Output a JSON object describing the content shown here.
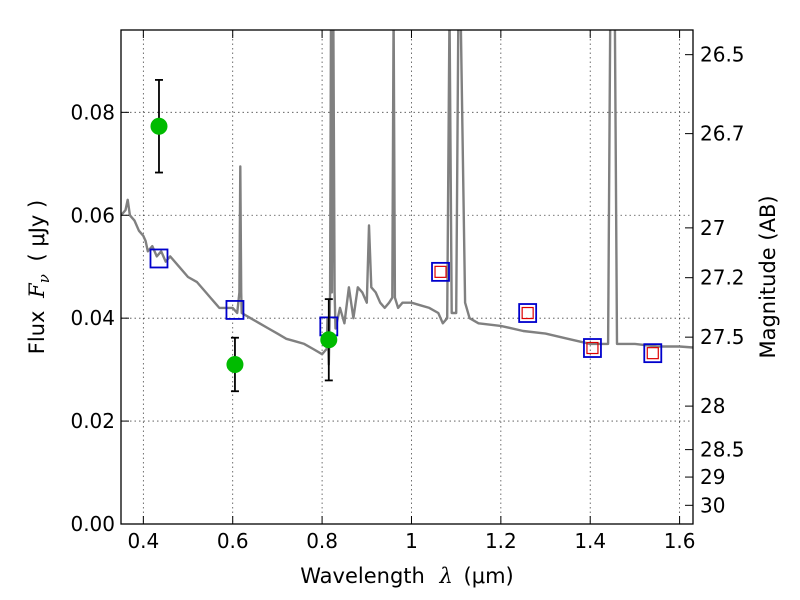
{
  "chart_data": {
    "type": "scatter",
    "title": "",
    "xlabel": {
      "prefix": "Wavelength",
      "symbol": "λ",
      "unit": "(μm)"
    },
    "ylabel": {
      "prefix": "Flux",
      "symbol": "F",
      "subscript": "ν",
      "unit": "( μJy )"
    },
    "y2label": "Magnitude (AB)",
    "xlim": [
      0.35,
      1.63
    ],
    "ylim": [
      0.0,
      0.096
    ],
    "x_ticks": [
      0.4,
      0.6,
      0.8,
      1.0,
      1.2,
      1.4,
      1.6
    ],
    "x_tick_labels": [
      "0.4",
      "0.6",
      "0.8",
      "1",
      "1.2",
      "1.4",
      "1.6"
    ],
    "y_ticks": [
      0.0,
      0.02,
      0.04,
      0.06,
      0.08
    ],
    "y_tick_labels": [
      "0.00",
      "0.02",
      "0.04",
      "0.06",
      "0.08"
    ],
    "y2_ticks": [
      26.5,
      26.7,
      27,
      27.2,
      27.5,
      28,
      28.5,
      29,
      30
    ],
    "y2_tick_labels": [
      "26.5",
      "26.7",
      "27",
      "27.2",
      "27.5",
      "28",
      "28.5",
      "29",
      "30"
    ],
    "grid": true,
    "colors": {
      "model": "#808080",
      "observed": "#00bb00",
      "model_bands": "#0000cc",
      "model_bands_inner": "#dd0000"
    },
    "series": [
      {
        "kind": "line",
        "points": [
          [
            0.35,
            0.06
          ],
          [
            0.36,
            0.061
          ],
          [
            0.365,
            0.063
          ],
          [
            0.37,
            0.06
          ],
          [
            0.38,
            0.059
          ],
          [
            0.39,
            0.057
          ],
          [
            0.4,
            0.056
          ],
          [
            0.405,
            0.055
          ],
          [
            0.41,
            0.053
          ],
          [
            0.42,
            0.054
          ],
          [
            0.43,
            0.052
          ],
          [
            0.44,
            0.053
          ],
          [
            0.45,
            0.051
          ],
          [
            0.46,
            0.052
          ],
          [
            0.48,
            0.05
          ],
          [
            0.5,
            0.048
          ],
          [
            0.52,
            0.047
          ],
          [
            0.54,
            0.045
          ],
          [
            0.55,
            0.044
          ],
          [
            0.56,
            0.043
          ],
          [
            0.57,
            0.042
          ],
          [
            0.58,
            0.042
          ],
          [
            0.59,
            0.042
          ],
          [
            0.6,
            0.042
          ],
          [
            0.61,
            0.041
          ],
          [
            0.615,
            0.045
          ],
          [
            0.617,
            0.0695
          ],
          [
            0.619,
            0.045
          ],
          [
            0.62,
            0.041
          ],
          [
            0.64,
            0.04
          ],
          [
            0.66,
            0.039
          ],
          [
            0.68,
            0.038
          ],
          [
            0.7,
            0.037
          ],
          [
            0.72,
            0.036
          ],
          [
            0.74,
            0.0355
          ],
          [
            0.76,
            0.035
          ],
          [
            0.78,
            0.034
          ],
          [
            0.8,
            0.033
          ],
          [
            0.81,
            0.034
          ],
          [
            0.812,
            0.04
          ],
          [
            0.815,
            0.031
          ],
          [
            0.818,
            0.045
          ],
          [
            0.82,
            0.1
          ],
          [
            0.822,
            0.045
          ],
          [
            0.825,
            0.1
          ],
          [
            0.828,
            0.045
          ],
          [
            0.83,
            0.038
          ],
          [
            0.84,
            0.042
          ],
          [
            0.85,
            0.039
          ],
          [
            0.86,
            0.046
          ],
          [
            0.87,
            0.04
          ],
          [
            0.88,
            0.046
          ],
          [
            0.89,
            0.045
          ],
          [
            0.9,
            0.043
          ],
          [
            0.905,
            0.058
          ],
          [
            0.91,
            0.046
          ],
          [
            0.92,
            0.045
          ],
          [
            0.93,
            0.043
          ],
          [
            0.94,
            0.042
          ],
          [
            0.95,
            0.043
          ],
          [
            0.957,
            0.044
          ],
          [
            0.96,
            0.1
          ],
          [
            0.963,
            0.044
          ],
          [
            0.97,
            0.042
          ],
          [
            0.98,
            0.043
          ],
          [
            1.0,
            0.043
          ],
          [
            1.02,
            0.0425
          ],
          [
            1.04,
            0.042
          ],
          [
            1.06,
            0.041
          ],
          [
            1.07,
            0.039
          ],
          [
            1.08,
            0.04
          ],
          [
            1.085,
            0.1
          ],
          [
            1.09,
            0.041
          ],
          [
            1.1,
            0.041
          ],
          [
            1.105,
            0.1
          ],
          [
            1.11,
            0.1
          ],
          [
            1.12,
            0.043
          ],
          [
            1.13,
            0.04
          ],
          [
            1.15,
            0.039
          ],
          [
            1.2,
            0.0385
          ],
          [
            1.25,
            0.0375
          ],
          [
            1.3,
            0.037
          ],
          [
            1.35,
            0.036
          ],
          [
            1.4,
            0.035
          ],
          [
            1.44,
            0.035
          ],
          [
            1.445,
            0.1
          ],
          [
            1.455,
            0.1
          ],
          [
            1.46,
            0.035
          ],
          [
            1.5,
            0.035
          ],
          [
            1.55,
            0.0345
          ],
          [
            1.6,
            0.0345
          ],
          [
            1.63,
            0.0343
          ]
        ]
      },
      {
        "kind": "points",
        "x": [
          0.435,
          0.605,
          0.815
        ],
        "y": [
          0.0773,
          0.031,
          0.0358
        ],
        "yerr": [
          0.009,
          0.0052,
          0.0079
        ]
      },
      {
        "kind": "squares",
        "x": [
          0.435,
          0.605,
          0.815,
          1.065,
          1.26,
          1.405,
          1.54
        ],
        "y": [
          0.0516,
          0.0416,
          0.0384,
          0.049,
          0.041,
          0.0342,
          0.0332
        ],
        "inner": [
          false,
          false,
          false,
          true,
          true,
          true,
          true
        ]
      }
    ]
  }
}
